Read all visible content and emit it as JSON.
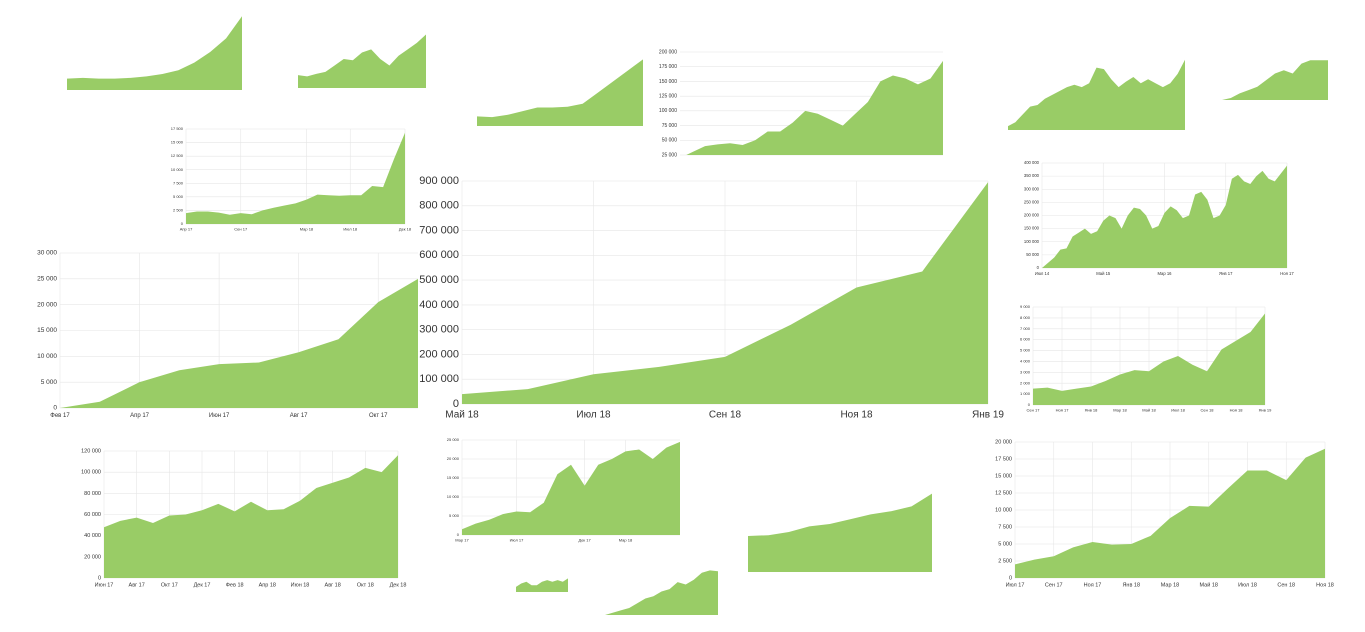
{
  "chart_data": [
    {
      "type": "area",
      "color": "#99cc66",
      "grid": true,
      "categories": [
        "Май 18",
        null,
        "Июл 18",
        null,
        "Сен 18",
        null,
        "Ноя 18",
        null,
        "Янв 19"
      ],
      "values": [
        40000,
        60000,
        120000,
        150000,
        190000,
        320000,
        470000,
        535000,
        895000
      ],
      "ylim": [
        0,
        900000
      ],
      "yticks": [
        0,
        {
          "value": 100000,
          "label": "100 000"
        },
        {
          "value": 200000,
          "label": "200 000"
        },
        {
          "value": 300000,
          "label": "300 000"
        },
        {
          "value": 400000,
          "label": "400 000"
        },
        {
          "value": 500000,
          "label": "500 000"
        },
        {
          "value": 600000,
          "label": "600 000"
        },
        {
          "value": 700000,
          "label": "700 000"
        },
        {
          "value": 800000,
          "label": "800 000"
        },
        {
          "value": 900000,
          "label": "900 000"
        }
      ]
    },
    {
      "type": "area",
      "color": "#99cc66",
      "grid": true,
      "categories": [
        "Фев 17",
        null,
        "Апр 17",
        null,
        "Июн 17",
        null,
        "Авг 17",
        null,
        "Окт 17",
        null
      ],
      "values": [
        0,
        1200,
        5000,
        7300,
        8500,
        8800,
        10800,
        13300,
        20500,
        25000
      ],
      "ylim": [
        0,
        30000
      ],
      "yticks": [
        0,
        {
          "value": 5000,
          "label": "5 000"
        },
        {
          "value": 10000,
          "label": "10 000"
        },
        {
          "value": 15000,
          "label": "15 000"
        },
        {
          "value": 20000,
          "label": "20 000"
        },
        {
          "value": 25000,
          "label": "25 000"
        },
        {
          "value": 30000,
          "label": "30 000"
        }
      ]
    },
    {
      "type": "area",
      "color": "#99cc66",
      "grid": true,
      "categories": [
        "Июн 17",
        null,
        "Авг 17",
        null,
        "Окт 17",
        null,
        "Дек 17",
        null,
        "Фев 18",
        null,
        "Апр 18",
        null,
        "Июн 18",
        null,
        "Авг 18",
        null,
        "Окт 18",
        null,
        "Дек 18"
      ],
      "values": [
        48000,
        54000,
        57000,
        52000,
        59000,
        60000,
        64000,
        70000,
        63000,
        72000,
        64000,
        65000,
        73000,
        85000,
        90000,
        95000,
        104000,
        100000,
        116000
      ],
      "ylim": [
        0,
        120000
      ],
      "yticks": [
        0,
        {
          "value": 20000,
          "label": "20 000"
        },
        {
          "value": 40000,
          "label": "40 000"
        },
        {
          "value": 60000,
          "label": "60 000"
        },
        {
          "value": 80000,
          "label": "80 000"
        },
        {
          "value": 100000,
          "label": "100 000"
        },
        {
          "value": 120000,
          "label": "120 000"
        }
      ]
    },
    {
      "type": "area",
      "color": "#99cc66",
      "grid": true,
      "categories": [
        "Июл 17",
        null,
        "Сен 17",
        null,
        "Ноя 17",
        null,
        "Янв 18",
        null,
        "Мар 18",
        null,
        "Май 18",
        null,
        "Июл 18",
        null,
        "Сен 18",
        null,
        "Ноя 18"
      ],
      "values": [
        2000,
        2700,
        3200,
        4500,
        5300,
        4900,
        5000,
        6200,
        8800,
        10600,
        10500,
        13200,
        15800,
        15800,
        14400,
        17700,
        19000
      ],
      "ylim": [
        0,
        20000
      ],
      "yticks": [
        0,
        {
          "value": 2500,
          "label": "2 500"
        },
        {
          "value": 5000,
          "label": "5 000"
        },
        {
          "value": 7500,
          "label": "7 500"
        },
        {
          "value": 10000,
          "label": "10 000"
        },
        {
          "value": 12500,
          "label": "12 500"
        },
        {
          "value": 15000,
          "label": "15 000"
        },
        {
          "value": 17500,
          "label": "17 500"
        },
        {
          "value": 20000,
          "label": "20 000"
        }
      ]
    },
    {
      "type": "area",
      "color": "#99cc66",
      "grid": true,
      "categories": [
        "Сен 17",
        null,
        "Ноя 17",
        null,
        "Янв 18",
        null,
        "Мар 18",
        null,
        "Май 18",
        null,
        "Июл 18",
        null,
        "Сен 18",
        null,
        "Ноя 18",
        null,
        "Янв 19"
      ],
      "values": [
        1500,
        1600,
        1300,
        1500,
        1700,
        2200,
        2800,
        3200,
        3100,
        4000,
        4500,
        3700,
        3100,
        5100,
        5900,
        6700,
        8400
      ],
      "ylim": [
        0,
        9000
      ],
      "yticks": [
        0,
        {
          "value": 1000,
          "label": "1 000"
        },
        {
          "value": 2000,
          "label": "2 000"
        },
        {
          "value": 3000,
          "label": "3 000"
        },
        {
          "value": 4000,
          "label": "4 000"
        },
        {
          "value": 5000,
          "label": "5 000"
        },
        {
          "value": 6000,
          "label": "6 000"
        },
        {
          "value": 7000,
          "label": "7 000"
        },
        {
          "value": 8000,
          "label": "8 000"
        },
        {
          "value": 9000,
          "label": "9 000"
        }
      ]
    },
    {
      "type": "area",
      "color": "#99cc66",
      "grid": true,
      "categories": [
        "Июл 14",
        null,
        null,
        null,
        null,
        null,
        null,
        null,
        null,
        null,
        "Май 15",
        null,
        null,
        null,
        null,
        null,
        null,
        null,
        null,
        null,
        "Мар 16",
        null,
        null,
        null,
        null,
        null,
        null,
        null,
        null,
        null,
        "Янв 17",
        null,
        null,
        null,
        null,
        null,
        null,
        null,
        null,
        null,
        "Ноя 17"
      ],
      "values": [
        0,
        20000,
        40000,
        70000,
        75000,
        120000,
        135000,
        150000,
        130000,
        140000,
        180000,
        200000,
        190000,
        150000,
        200000,
        230000,
        225000,
        200000,
        150000,
        160000,
        210000,
        235000,
        220000,
        190000,
        200000,
        280000,
        290000,
        260000,
        190000,
        200000,
        240000,
        340000,
        355000,
        330000,
        320000,
        350000,
        370000,
        340000,
        330000,
        360000,
        390000
      ],
      "ylim": [
        0,
        400000
      ],
      "yticks": [
        0,
        {
          "value": 50000,
          "label": "50 000"
        },
        {
          "value": 100000,
          "label": "100 000"
        },
        {
          "value": 150000,
          "label": "150 000"
        },
        {
          "value": 200000,
          "label": "200 000"
        },
        {
          "value": 250000,
          "label": "250 000"
        },
        {
          "value": 300000,
          "label": "300 000"
        },
        {
          "value": 350000,
          "label": "350 000"
        },
        {
          "value": 400000,
          "label": "400 000"
        }
      ]
    },
    {
      "type": "area",
      "color": "#99cc66",
      "grid": true,
      "values": [
        20000,
        30000,
        40000,
        43000,
        45000,
        42000,
        50000,
        65000,
        65000,
        80000,
        100000,
        95000,
        85000,
        75000,
        95000,
        115000,
        150000,
        160000,
        155000,
        145000,
        155000,
        185000
      ],
      "ylim": [
        25000,
        200000
      ],
      "yticks": [
        {
          "value": 25000,
          "label": "25 000"
        },
        {
          "value": 50000,
          "label": "50 000"
        },
        {
          "value": 75000,
          "label": "75 000"
        },
        {
          "value": 100000,
          "label": "100 000"
        },
        {
          "value": 125000,
          "label": "125 000"
        },
        {
          "value": 150000,
          "label": "150 000"
        },
        {
          "value": 175000,
          "label": "175 000"
        },
        {
          "value": 200000,
          "label": "200 000"
        }
      ]
    },
    {
      "type": "area",
      "color": "#99cc66",
      "grid": true,
      "categories": [
        "Апр 17",
        null,
        null,
        null,
        null,
        "Сен 17",
        null,
        null,
        null,
        null,
        null,
        "Мар 18",
        null,
        null,
        null,
        "Июл 18",
        null,
        null,
        null,
        null,
        "Дек 18"
      ],
      "values": [
        2000,
        2300,
        2300,
        2100,
        1700,
        2000,
        1800,
        2500,
        3000,
        3400,
        3800,
        4500,
        5400,
        5300,
        5200,
        5300,
        5300,
        7000,
        6800,
        12000,
        16800
      ],
      "ylim": [
        0,
        17500
      ],
      "yticks": [
        0,
        {
          "value": 2500,
          "label": "2 500"
        },
        {
          "value": 5000,
          "label": "5 000"
        },
        {
          "value": 7500,
          "label": "7 500"
        },
        {
          "value": 10000,
          "label": "10 000"
        },
        {
          "value": 12500,
          "label": "12 500"
        },
        {
          "value": 15000,
          "label": "15 000"
        },
        {
          "value": 17500,
          "label": "17 500"
        }
      ]
    },
    {
      "type": "area",
      "color": "#99cc66",
      "grid": true,
      "categories": [
        "Мар 17",
        null,
        null,
        null,
        "Июл 17",
        null,
        null,
        null,
        null,
        "Дек 17",
        null,
        null,
        "Мар 18",
        null,
        null,
        null,
        null
      ],
      "values": [
        1500,
        3000,
        4000,
        5500,
        6200,
        6000,
        8500,
        16000,
        18500,
        13000,
        18500,
        20000,
        22000,
        22500,
        20000,
        23000,
        24500
      ],
      "ylim": [
        0,
        25000
      ],
      "yticks": [
        0,
        {
          "value": 5000,
          "label": "5 000"
        },
        {
          "value": 10000,
          "label": "10 000"
        },
        {
          "value": 15000,
          "label": "15 000"
        },
        {
          "value": 20000,
          "label": "20 000"
        },
        {
          "value": 25000,
          "label": "25 000"
        }
      ]
    },
    {
      "type": "area",
      "color": "#99cc66",
      "values": [
        1500,
        1600,
        1500,
        1500,
        1600,
        1800,
        2100,
        2600,
        3600,
        5000,
        6800,
        9700
      ],
      "ylim": [
        0,
        10000
      ]
    },
    {
      "type": "area",
      "color": "#99cc66",
      "values": [
        2,
        1.8,
        2.2,
        2.5,
        3.5,
        4.5,
        4.3,
        5.5,
        6,
        4.5,
        3.5,
        5,
        6,
        7,
        8.3
      ],
      "ylim": [
        0,
        9
      ]
    },
    {
      "type": "area",
      "color": "#99cc66",
      "values": [
        1.3,
        1.2,
        1.5,
        2,
        2.5,
        2.5,
        2.6,
        3,
        4.5,
        6,
        7.5,
        9
      ],
      "ylim": [
        0,
        10
      ]
    },
    {
      "type": "area",
      "color": "#99cc66",
      "values": [
        0.5,
        1,
        2,
        3,
        3.2,
        4,
        4.5,
        5,
        5.5,
        5.8,
        5.5,
        6,
        8,
        7.8,
        6.5,
        5.5,
        6.2,
        6.8,
        6,
        6.5,
        6,
        5.5,
        6,
        7.2,
        9
      ],
      "ylim": [
        0,
        10
      ]
    },
    {
      "type": "area",
      "color": "#99cc66",
      "values": [
        0,
        0.3,
        1,
        1.5,
        2,
        3,
        4,
        4.5,
        4,
        5.5,
        6,
        6,
        6
      ],
      "ylim": [
        0,
        6.5
      ]
    },
    {
      "type": "area",
      "color": "#99cc66",
      "values": [
        4.5,
        4.6,
        5,
        5.7,
        6,
        6.6,
        7.2,
        7.6,
        8.2,
        9.8
      ],
      "ylim": [
        0,
        10
      ]
    },
    {
      "type": "area",
      "color": "#99cc66",
      "values": [
        3,
        5,
        6,
        4,
        4,
        6,
        7,
        6,
        7,
        6,
        8
      ],
      "ylim": [
        0,
        10
      ]
    },
    {
      "type": "area",
      "color": "#99cc66",
      "values": [
        0,
        0.5,
        1,
        1.5,
        2.5,
        3.5,
        4,
        5,
        5.5,
        7,
        6.5,
        7.5,
        9,
        9.5,
        9.3
      ],
      "ylim": [
        0,
        10
      ]
    }
  ]
}
